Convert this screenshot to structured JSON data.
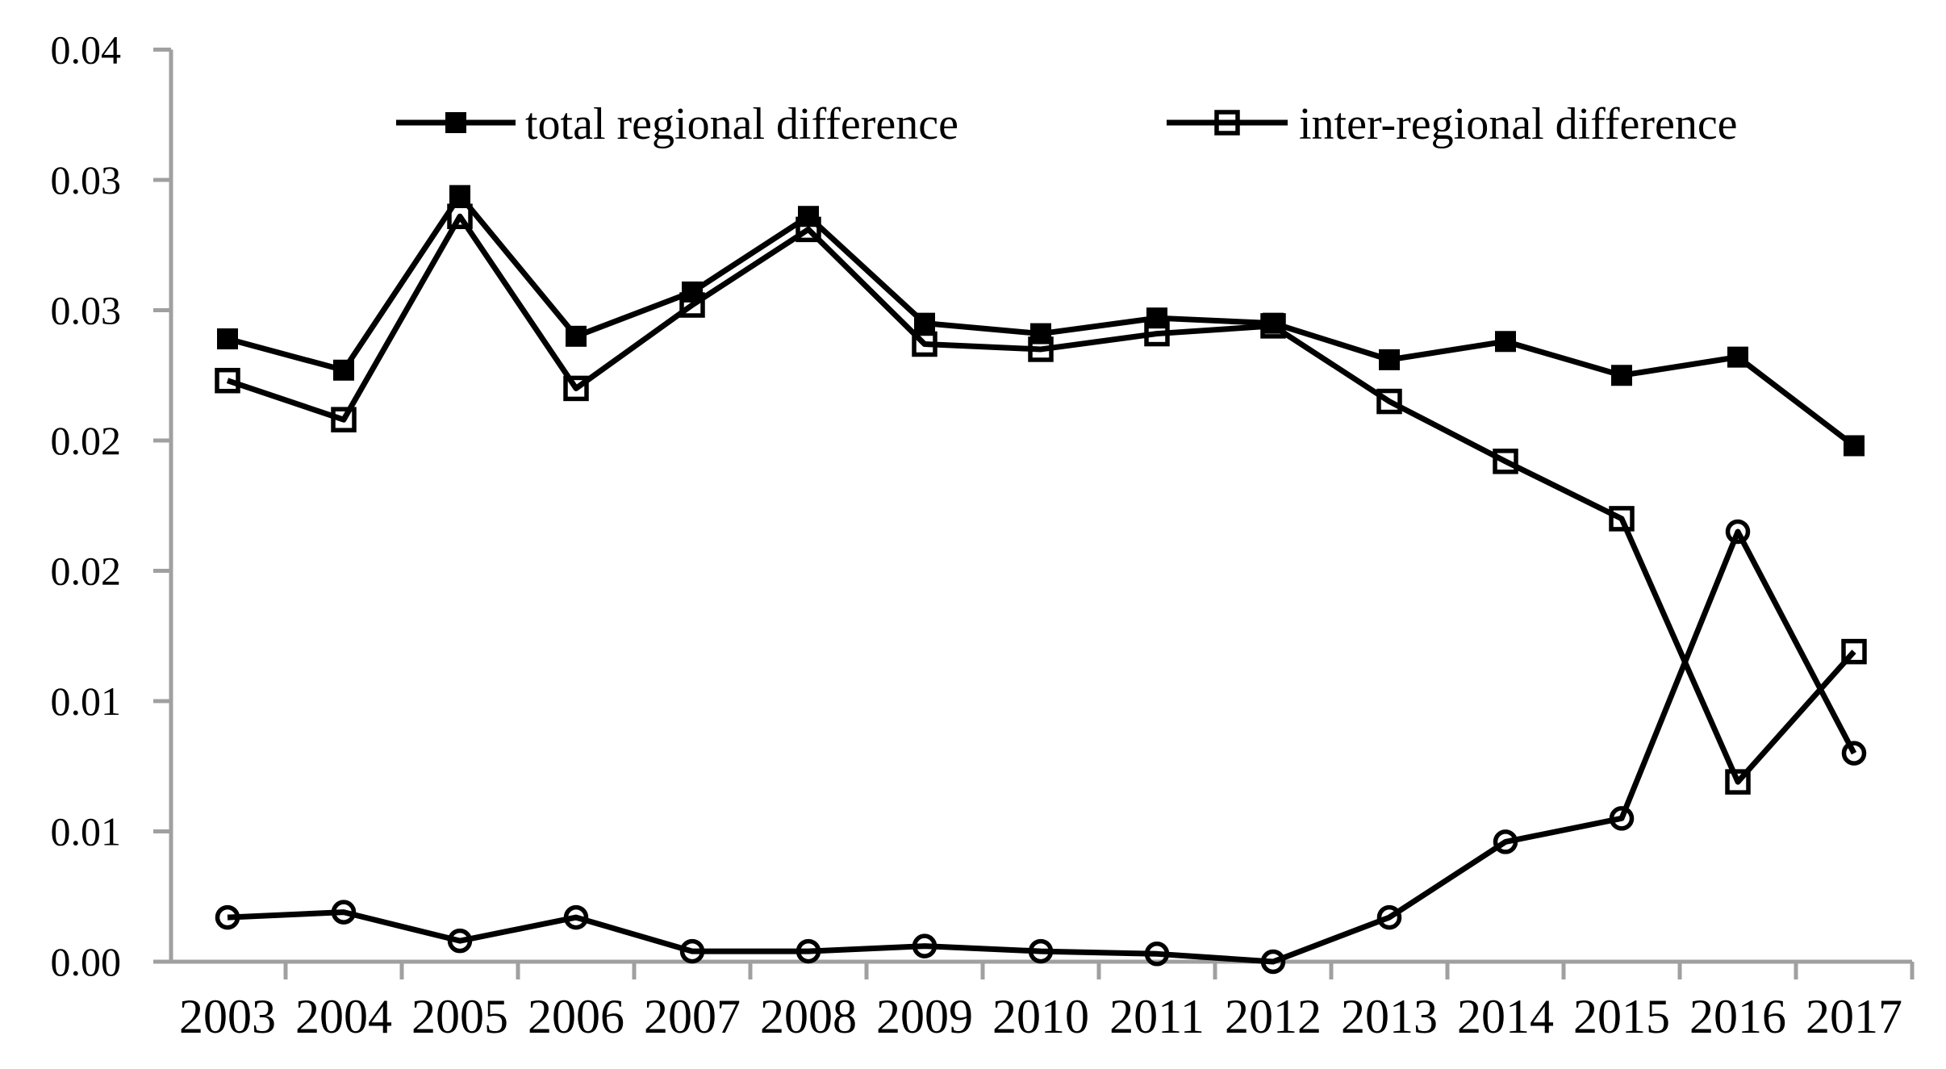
{
  "figure": {
    "background": "#ffffff",
    "axis_color": "#a0a0a0",
    "series_color": "#000000"
  },
  "legend": {
    "items": [
      {
        "label": "total regional difference",
        "marker": "filled-square"
      },
      {
        "label": "inter-regional difference",
        "marker": "open-square"
      }
    ]
  },
  "chart_data": {
    "type": "line",
    "categories": [
      "2003",
      "2004",
      "2005",
      "2006",
      "2007",
      "2008",
      "2009",
      "2010",
      "2011",
      "2012",
      "2013",
      "2014",
      "2015",
      "2016",
      "2017"
    ],
    "series": [
      {
        "name": "total regional difference",
        "marker": "filled-square",
        "in_legend": true,
        "values": [
          0.0239,
          0.0227,
          0.0294,
          0.024,
          0.0257,
          0.0286,
          0.0245,
          0.0241,
          0.0247,
          0.0245,
          0.0231,
          0.0238,
          0.0225,
          0.0232,
          0.0198
        ]
      },
      {
        "name": "inter-regional difference",
        "marker": "open-square",
        "in_legend": true,
        "values": [
          0.0223,
          0.0208,
          0.0286,
          0.022,
          0.0252,
          0.0281,
          0.0237,
          0.0235,
          0.0241,
          0.0244,
          0.0215,
          0.0192,
          0.017,
          0.0069,
          0.0119
        ]
      },
      {
        "name": "",
        "marker": "open-circle",
        "in_legend": false,
        "values": [
          0.0017,
          0.0019,
          0.0008,
          0.0017,
          0.0004,
          0.0004,
          0.0006,
          0.0004,
          0.0003,
          0.0,
          0.0017,
          0.0046,
          0.0055,
          0.0165,
          0.008
        ]
      }
    ],
    "title": "",
    "xlabel": "",
    "ylabel": "",
    "ylim": [
      0,
      0.035
    ],
    "y_tick_step": 0.005,
    "y_ticks": [
      {
        "value": 0.0,
        "label": "0.00"
      },
      {
        "value": 0.005,
        "label": "0.01"
      },
      {
        "value": 0.01,
        "label": "0.01"
      },
      {
        "value": 0.015,
        "label": "0.02"
      },
      {
        "value": 0.02,
        "label": "0.02"
      },
      {
        "value": 0.025,
        "label": "0.03"
      },
      {
        "value": 0.03,
        "label": "0.03"
      },
      {
        "value": 0.035,
        "label": "0.04"
      }
    ],
    "grid": false,
    "legend_position": "top-inside"
  }
}
